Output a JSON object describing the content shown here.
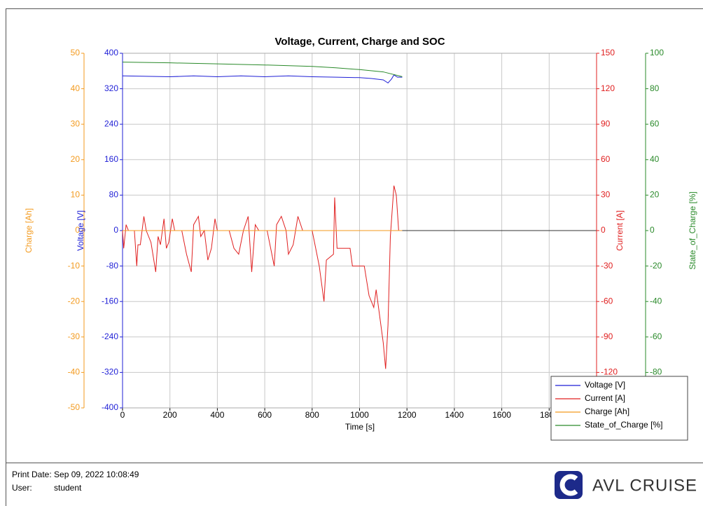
{
  "chart_data": {
    "type": "line",
    "title": "Voltage, Current, Charge and SOC",
    "x_label": "Time [s]",
    "xlim": [
      0,
      2000
    ],
    "xticks": [
      0,
      200,
      400,
      600,
      800,
      1000,
      1200,
      1400,
      1600,
      1800
    ],
    "grid": true,
    "legend": "bottom-right",
    "axes": [
      {
        "label": "Charge [Ah]",
        "color": "#f39a1e",
        "lim": [
          -50,
          50
        ],
        "ticks": [
          -50,
          -40,
          -30,
          -20,
          -10,
          0,
          10,
          20,
          30,
          40,
          50
        ]
      },
      {
        "label": "Voltage [V]",
        "color": "#1f1fd6",
        "lim": [
          -400,
          400
        ],
        "ticks": [
          -400,
          -320,
          -240,
          -160,
          -80,
          0,
          80,
          160,
          240,
          320,
          400
        ]
      },
      {
        "label": "Current [A]",
        "color": "#e02020",
        "lim": [
          -150,
          150
        ],
        "ticks": [
          -120,
          -90,
          -60,
          -30,
          0,
          30,
          60,
          90,
          120,
          150
        ]
      },
      {
        "label": "State_of_Charge [%]",
        "color": "#2a8a2a",
        "lim": [
          -100,
          100
        ],
        "ticks": [
          -80,
          -60,
          -40,
          -20,
          0,
          20,
          40,
          60,
          80,
          100
        ]
      }
    ],
    "series": [
      {
        "name": "Voltage [V]",
        "color": "#1f1fd6",
        "axis": 1,
        "x": [
          0,
          100,
          200,
          300,
          400,
          500,
          600,
          700,
          800,
          900,
          1000,
          1050,
          1100,
          1120,
          1135,
          1145,
          1160,
          1180
        ],
        "values": [
          349,
          348,
          347,
          349,
          347,
          349,
          347,
          349,
          347,
          346,
          345,
          343,
          340,
          333,
          342,
          351,
          346,
          346
        ]
      },
      {
        "name": "Current [A]",
        "color": "#e02020",
        "axis": 2,
        "x": [
          0,
          5,
          15,
          25,
          50,
          60,
          65,
          75,
          90,
          100,
          120,
          140,
          150,
          160,
          175,
          185,
          195,
          210,
          220,
          250,
          270,
          290,
          300,
          320,
          330,
          345,
          360,
          375,
          390,
          400,
          450,
          470,
          490,
          510,
          530,
          545,
          560,
          575,
          610,
          640,
          650,
          670,
          690,
          700,
          720,
          740,
          760,
          800,
          830,
          840,
          850,
          860,
          890,
          895,
          905,
          960,
          970,
          1020,
          1040,
          1060,
          1070,
          1100,
          1110,
          1120,
          1130,
          1145,
          1155,
          1165,
          1180
        ],
        "values": [
          0,
          -15,
          5,
          0,
          0,
          -30,
          -12,
          -12,
          12,
          0,
          -10,
          -35,
          -5,
          -12,
          10,
          -15,
          -10,
          10,
          0,
          0,
          -20,
          -35,
          5,
          12,
          -5,
          0,
          -25,
          -15,
          10,
          0,
          0,
          -15,
          -20,
          0,
          12,
          -35,
          5,
          0,
          0,
          -30,
          5,
          12,
          0,
          -20,
          -12,
          12,
          0,
          0,
          -30,
          -45,
          -60,
          -25,
          -20,
          28,
          -15,
          -15,
          -30,
          -30,
          -55,
          -65,
          -50,
          -95,
          -117,
          -80,
          -5,
          38,
          30,
          0,
          0
        ]
      },
      {
        "name": "Charge [Ah]",
        "color": "#f39a1e",
        "axis": 0,
        "x": [
          0,
          1180
        ],
        "values": [
          0,
          0
        ]
      },
      {
        "name": "State_of_Charge [%]",
        "color": "#2a8a2a",
        "axis": 3,
        "x": [
          0,
          200,
          400,
          600,
          800,
          900,
          1000,
          1100,
          1180
        ],
        "values": [
          95,
          94.6,
          94,
          93.4,
          92.6,
          91.8,
          90.8,
          89.5,
          86.8
        ]
      }
    ]
  },
  "footer": {
    "print_date": "Print Date: Sep 09, 2022 10:08:49",
    "user_label": "User:",
    "user": "student",
    "brand": "AVL CRUISE"
  }
}
